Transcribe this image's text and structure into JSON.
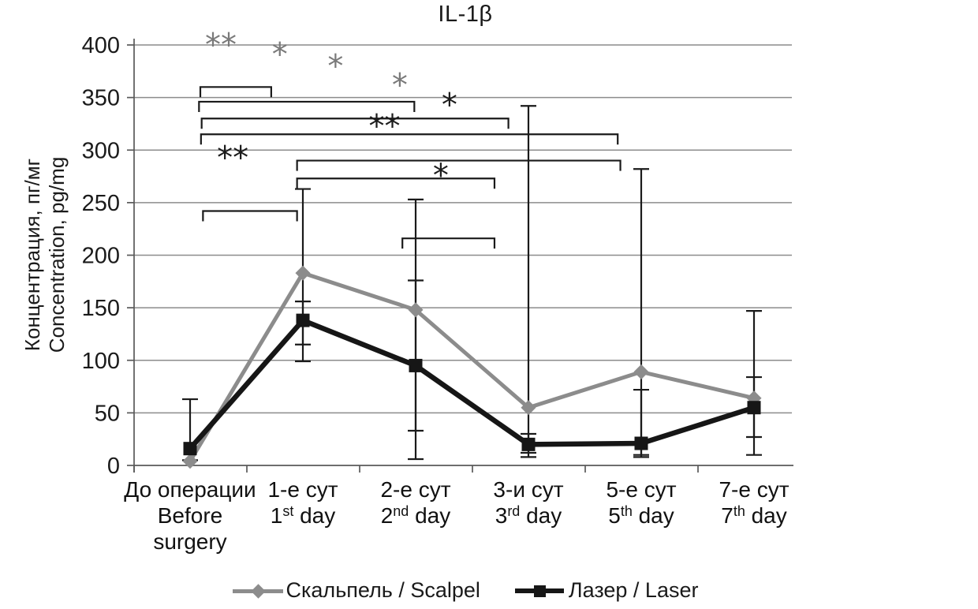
{
  "title": "IL-1β",
  "y_axis": {
    "title_ru": "Концентрация, пг/мг",
    "title_en": "Concentration, pg/mg",
    "ticks": [
      0,
      50,
      100,
      150,
      200,
      250,
      300,
      350,
      400
    ]
  },
  "legend": {
    "scalpel": "Скальпель / Scalpel",
    "laser": "Лазер / Laser"
  },
  "chart_data": {
    "type": "line",
    "title": "IL-1β",
    "ylabel_ru": "Концентрация, пг/мг",
    "ylabel_en": "Concentration, pg/mg",
    "ylim": [
      0,
      400
    ],
    "ytick_step": 50,
    "grid": true,
    "legend_position": "bottom",
    "categories": [
      {
        "ru": "До операции",
        "en_base": "Before",
        "en_sup": "",
        "en_tail": "",
        "en_line2": "surgery"
      },
      {
        "ru": "1-е сут",
        "en_base": "1",
        "en_sup": "st",
        "en_tail": " day",
        "en_line2": ""
      },
      {
        "ru": "2-е сут",
        "en_base": "2",
        "en_sup": "nd",
        "en_tail": " day",
        "en_line2": ""
      },
      {
        "ru": "3-и сут",
        "en_base": "3",
        "en_sup": "rd",
        "en_tail": " day",
        "en_line2": ""
      },
      {
        "ru": "5-е сут",
        "en_base": "5",
        "en_sup": "th",
        "en_tail": " day",
        "en_line2": ""
      },
      {
        "ru": "7-е сут",
        "en_base": "7",
        "en_sup": "th",
        "en_tail": " day",
        "en_line2": ""
      }
    ],
    "series": [
      {
        "name": "Скальпель / Scalpel",
        "marker": "diamond",
        "color": "#8c8c8c",
        "line_width": 5,
        "values": [
          4,
          183,
          148,
          55,
          89,
          64
        ],
        "error_bars": [
          null,
          [
            115,
            263
          ],
          [
            33,
            253
          ],
          [
            12,
            342
          ],
          [
            8,
            282
          ],
          [
            10,
            147
          ]
        ]
      },
      {
        "name": "Лазер / Laser",
        "marker": "square",
        "color": "#161616",
        "line_width": 6.5,
        "values": [
          16,
          138,
          95,
          20,
          21,
          55
        ],
        "error_bars": [
          [
            5,
            63
          ],
          [
            99,
            156
          ],
          [
            6,
            176
          ],
          [
            8,
            30
          ],
          [
            10,
            72
          ],
          [
            27,
            84
          ]
        ]
      }
    ],
    "significance_brackets": [
      {
        "pair": "before_surgery-1st_day",
        "y": 360,
        "x1f": 0.1,
        "x2f": 0.207
      },
      {
        "pair": "before_surgery-2nd_day",
        "y": 346,
        "x1f": 0.098,
        "x2f": 0.423
      },
      {
        "pair": "before_surgery-3rd_day",
        "y": 330,
        "x1f": 0.102,
        "x2f": 0.565
      },
      {
        "pair": "before_surgery-5th_day",
        "y": 315,
        "x1f": 0.101,
        "x2f": 0.73
      },
      {
        "pair": "1st_day-5th_day",
        "y": 290,
        "x1f": 0.246,
        "x2f": 0.734
      },
      {
        "pair": "1st_day-3rd_day",
        "y": 273,
        "x1f": 0.246,
        "x2f": 0.544
      },
      {
        "pair": "before_surgery-1st_day",
        "y": 242,
        "x1f": 0.104,
        "x2f": 0.246
      },
      {
        "pair": "2nd_day-3rd_day",
        "y": 216,
        "x1f": 0.405,
        "x2f": 0.544
      }
    ],
    "significance_stars": [
      {
        "text": "**",
        "color": "#7a7a7a",
        "y": 407,
        "xf": 0.131
      },
      {
        "text": "*",
        "color": "#7a7a7a",
        "y": 398,
        "xf": 0.22
      },
      {
        "text": "*",
        "color": "#7a7a7a",
        "y": 387,
        "xf": 0.304
      },
      {
        "text": "*",
        "color": "#7a7a7a",
        "y": 369,
        "xf": 0.401
      },
      {
        "text": "*",
        "color": "#1c1c1c",
        "y": 350,
        "xf": 0.476
      },
      {
        "text": "**",
        "color": "#1c1c1c",
        "y": 330,
        "xf": 0.378
      },
      {
        "text": "**",
        "color": "#1c1c1c",
        "y": 300,
        "xf": 0.149
      },
      {
        "text": "*",
        "color": "#1c1c1c",
        "y": 283,
        "xf": 0.463
      }
    ]
  }
}
